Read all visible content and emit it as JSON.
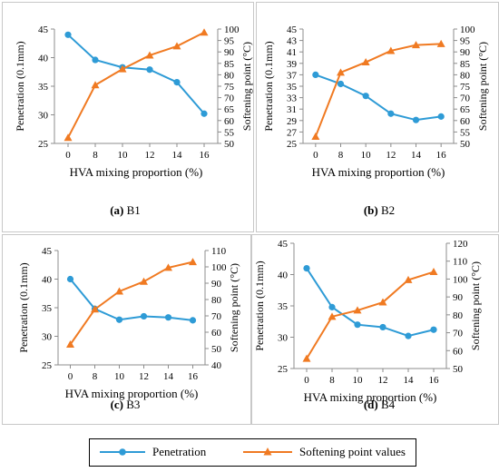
{
  "colors": {
    "penetration": "#2E9BD6",
    "softening": "#F07A22",
    "axis": "#8c8c8c",
    "panel_border": "#c8c8c8"
  },
  "legend": {
    "items": [
      {
        "label": "Penetration",
        "marker": "circle",
        "color": "#2E9BD6"
      },
      {
        "label": "Softening point values",
        "marker": "triangle",
        "color": "#F07A22"
      }
    ]
  },
  "chart_data": [
    {
      "type": "line",
      "panel_caption_prefix": "(a)",
      "panel_caption_name": "B1",
      "x": [
        0,
        8,
        10,
        12,
        14,
        16
      ],
      "xlabel": "HVA mixing proportion (%)",
      "ylabel_left": "Penetration (0.1mm)",
      "ylabel_right": "Softening point (°C)",
      "ylim_left": [
        25,
        45
      ],
      "yticks_left": [
        25,
        30,
        35,
        40,
        45
      ],
      "ylim_right": [
        50,
        100
      ],
      "yticks_right": [
        50,
        55,
        60,
        65,
        70,
        75,
        80,
        85,
        90,
        95,
        100
      ],
      "series": [
        {
          "name": "Penetration",
          "axis": "left",
          "values": [
            44.0,
            39.6,
            38.3,
            37.9,
            35.7,
            30.2
          ]
        },
        {
          "name": "Softening point values",
          "axis": "right",
          "values": [
            52.5,
            75.5,
            82.5,
            88.5,
            92.5,
            98.5
          ]
        }
      ]
    },
    {
      "type": "line",
      "panel_caption_prefix": "(b)",
      "panel_caption_name": "B2",
      "x": [
        0,
        8,
        10,
        12,
        14,
        16
      ],
      "xlabel": "HVA mixing proportion (%)",
      "ylabel_left": "Penetration (0.1mm)",
      "ylabel_right": "Softening point (°C)",
      "ylim_left": [
        25,
        45
      ],
      "yticks_left": [
        25,
        27,
        29,
        31,
        33,
        35,
        37,
        39,
        41,
        43,
        45
      ],
      "ylim_right": [
        50,
        100
      ],
      "yticks_right": [
        50,
        55,
        60,
        65,
        70,
        75,
        80,
        85,
        90,
        95,
        100
      ],
      "series": [
        {
          "name": "Penetration",
          "axis": "left",
          "values": [
            37.0,
            35.4,
            33.3,
            30.2,
            29.1,
            29.7
          ]
        },
        {
          "name": "Softening point values",
          "axis": "right",
          "values": [
            53.0,
            81.0,
            85.5,
            90.5,
            93.0,
            93.5
          ]
        }
      ]
    },
    {
      "type": "line",
      "panel_caption_prefix": "(c)",
      "panel_caption_name": "B3",
      "x": [
        0,
        8,
        10,
        12,
        14,
        16
      ],
      "xlabel": "HVA mixing proportion (%)",
      "ylabel_left": "Penetration (0.1mm)",
      "ylabel_right": "Softening point (°C)",
      "ylim_left": [
        25,
        45
      ],
      "yticks_left": [
        25,
        30,
        35,
        40,
        45
      ],
      "ylim_right": [
        40,
        110
      ],
      "yticks_right": [
        40,
        50,
        60,
        70,
        80,
        90,
        100,
        110
      ],
      "series": [
        {
          "name": "Penetration",
          "axis": "left",
          "values": [
            40.0,
            34.8,
            32.9,
            33.5,
            33.3,
            32.8
          ]
        },
        {
          "name": "Softening point values",
          "axis": "right",
          "values": [
            52.5,
            74.0,
            85.0,
            91.0,
            99.5,
            103.0
          ]
        }
      ]
    },
    {
      "type": "line",
      "panel_caption_prefix": "(d)",
      "panel_caption_name": "B4",
      "x": [
        0,
        8,
        10,
        12,
        14,
        16
      ],
      "xlabel": "HVA mixing proportion (%)",
      "ylabel_left": "Penetration (0.1mm)",
      "ylabel_right": "Softening point (°C)",
      "ylim_left": [
        25,
        45
      ],
      "yticks_left": [
        25,
        30,
        35,
        40,
        45
      ],
      "ylim_right": [
        50,
        120
      ],
      "yticks_right": [
        50,
        60,
        70,
        80,
        90,
        100,
        110,
        120
      ],
      "series": [
        {
          "name": "Penetration",
          "axis": "left",
          "values": [
            41.0,
            34.8,
            32.0,
            31.6,
            30.2,
            31.2
          ]
        },
        {
          "name": "Softening point values",
          "axis": "right",
          "values": [
            55.5,
            79.0,
            82.5,
            87.0,
            99.5,
            104.0
          ]
        }
      ]
    }
  ]
}
